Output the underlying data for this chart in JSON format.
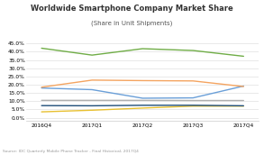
{
  "title": "Worldwide Smartphone Company Market Share",
  "subtitle": "(Share in Unit Shipments)",
  "source": "Source: IDC Quarterly Mobile Phone Tracker - Final Historical, 2017Q4",
  "x_labels": [
    "2016Q4",
    "2017Q1",
    "2017Q2",
    "2017Q3",
    "2017Q4"
  ],
  "series": {
    "Apple": [
      18.0,
      17.0,
      11.8,
      12.0,
      19.2
    ],
    "Samsung": [
      18.5,
      22.8,
      22.5,
      22.3,
      18.9
    ],
    "Huawei": [
      10.5,
      10.5,
      10.5,
      10.4,
      10.4
    ],
    "Xiaomi": [
      3.5,
      4.5,
      5.8,
      7.0,
      7.0
    ],
    "OPPO": [
      7.3,
      7.2,
      7.5,
      7.5,
      7.2
    ],
    "Others": [
      42.2,
      38.0,
      41.9,
      40.8,
      37.3
    ]
  },
  "colors": {
    "Apple": "#6a9fd8",
    "Samsung": "#f4a460",
    "Huawei": "#b0b0b0",
    "Xiaomi": "#e8c030",
    "OPPO": "#1f4e79",
    "Others": "#70ad47"
  },
  "ylim": [
    -2,
    47
  ],
  "yticks": [
    0,
    5,
    10,
    15,
    20,
    25,
    30,
    35,
    40,
    45
  ],
  "background": "#ffffff",
  "grid_color": "#e0e0e0",
  "title_fontsize": 6.0,
  "subtitle_fontsize": 5.0,
  "tick_fontsize": 4.2,
  "source_fontsize": 3.2,
  "legend_fontsize": 3.8
}
